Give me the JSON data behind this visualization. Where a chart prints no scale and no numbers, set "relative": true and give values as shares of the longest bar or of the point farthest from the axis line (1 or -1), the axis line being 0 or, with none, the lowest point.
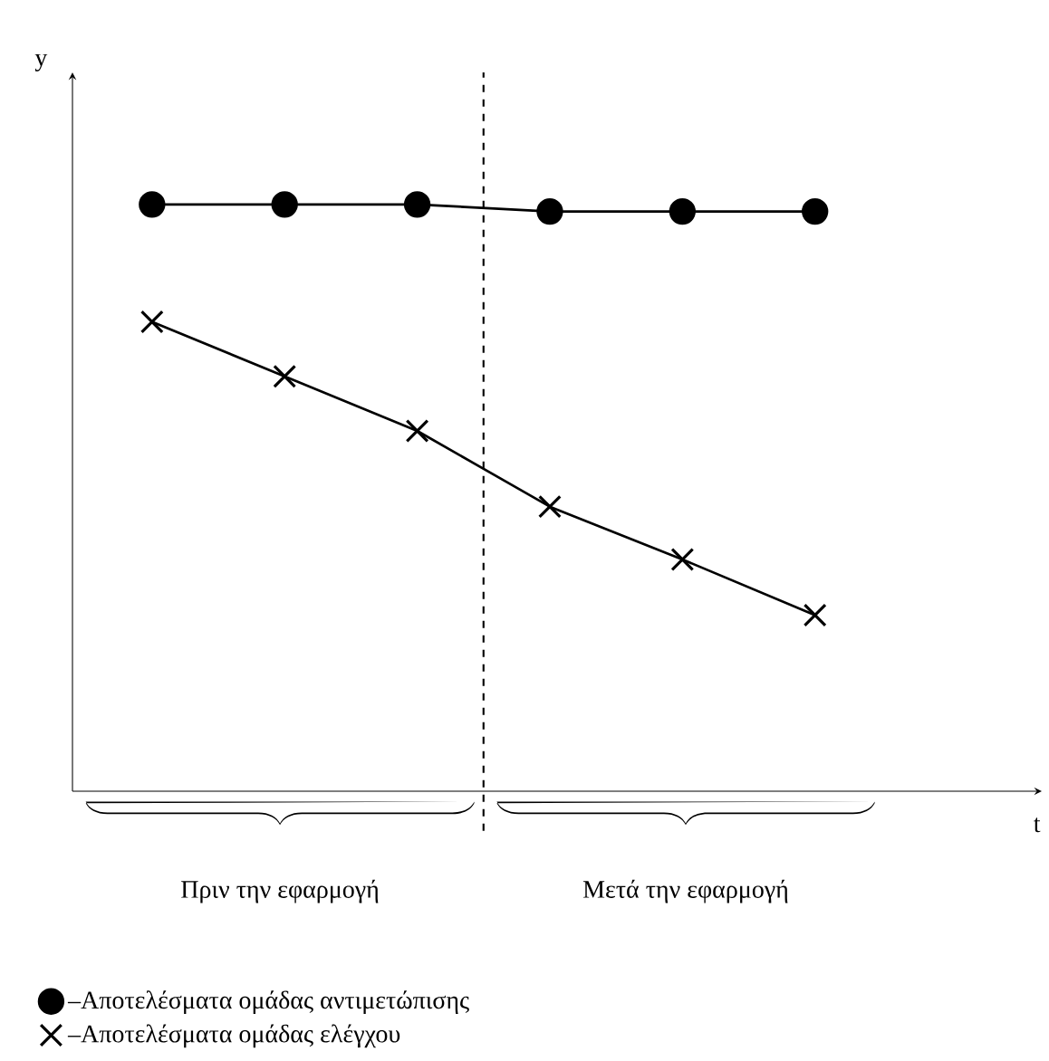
{
  "chart_data": {
    "type": "line",
    "relative": true,
    "categories": [
      null,
      null,
      null,
      null,
      null,
      null
    ],
    "legend": "bottom",
    "series": [
      {
        "name": "–Αποτελέσματα ομάδας αντιμετώπισης",
        "color": "#000000",
        "marker": "circle",
        "values": [
          1,
          1,
          1,
          0.988,
          0.988,
          0.988
        ]
      },
      {
        "name": "–Αποτελέσματα ομάδας ελέγχου",
        "color": "#000000",
        "marker": "cross",
        "values": [
          0.8,
          0.707,
          0.614,
          0.485,
          0.395,
          0.3
        ]
      }
    ],
    "annotations": [
      "Πριν την εφαρμογή",
      "Μετά την εφαρμογή",
      "y",
      "t"
    ]
  }
}
